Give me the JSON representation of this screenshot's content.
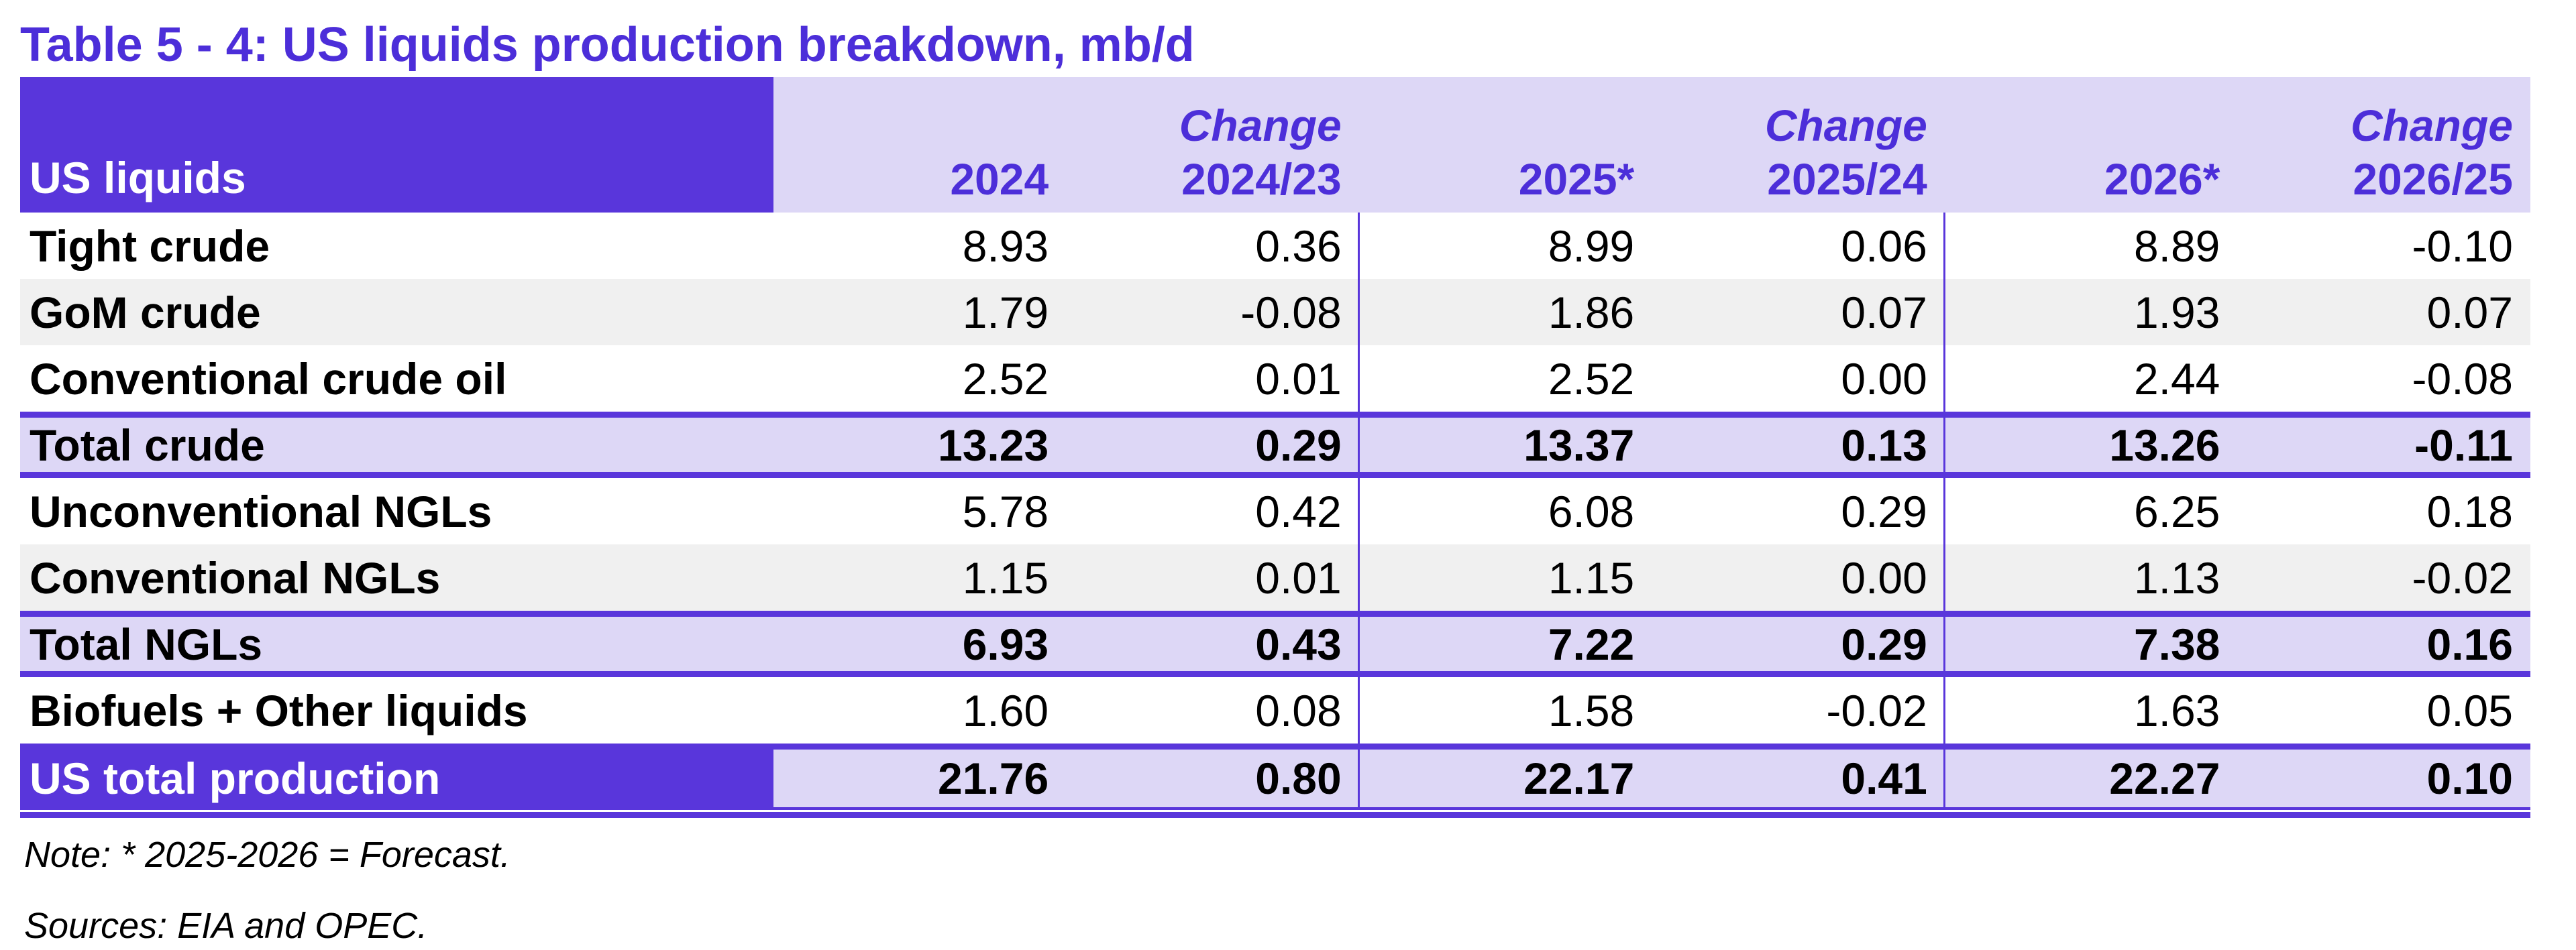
{
  "title": "Table 5 - 4: US liquids production breakdown, mb/d",
  "header": {
    "corner_label": "US liquids",
    "change_label": "Change",
    "columns": [
      "2024",
      "2024/23",
      "2025*",
      "2025/24",
      "2026*",
      "2026/25"
    ]
  },
  "rows": [
    {
      "label": "Tight crude",
      "values": [
        "8.93",
        "0.36",
        "8.99",
        "0.06",
        "8.89",
        "-0.10"
      ]
    },
    {
      "label": "GoM crude",
      "values": [
        "1.79",
        "-0.08",
        "1.86",
        "0.07",
        "1.93",
        "0.07"
      ]
    },
    {
      "label": "Conventional crude oil",
      "values": [
        "2.52",
        "0.01",
        "2.52",
        "0.00",
        "2.44",
        "-0.08"
      ]
    },
    {
      "label": "Total crude",
      "values": [
        "13.23",
        "0.29",
        "13.37",
        "0.13",
        "13.26",
        "-0.11"
      ]
    },
    {
      "label": "Unconventional NGLs",
      "values": [
        "5.78",
        "0.42",
        "6.08",
        "0.29",
        "6.25",
        "0.18"
      ]
    },
    {
      "label": "Conventional NGLs",
      "values": [
        "1.15",
        "0.01",
        "1.15",
        "0.00",
        "1.13",
        "-0.02"
      ]
    },
    {
      "label": "Total NGLs",
      "values": [
        "6.93",
        "0.43",
        "7.22",
        "0.29",
        "7.38",
        "0.16"
      ]
    },
    {
      "label": "Biofuels + Other liquids",
      "values": [
        "1.60",
        "0.08",
        "1.58",
        "-0.02",
        "1.63",
        "0.05"
      ]
    },
    {
      "label": "US total production",
      "values": [
        "21.76",
        "0.80",
        "22.17",
        "0.41",
        "22.27",
        "0.10"
      ]
    }
  ],
  "footer": {
    "note": "Note: * 2025-2026 = Forecast.",
    "sources": "Sources: EIA and OPEC."
  },
  "colors": {
    "accent_purple": "#5936DB",
    "light_purple": "#DDD7F6",
    "header_text_purple": "#4C2ED9",
    "alt_row_gray": "#F0F0F0"
  }
}
